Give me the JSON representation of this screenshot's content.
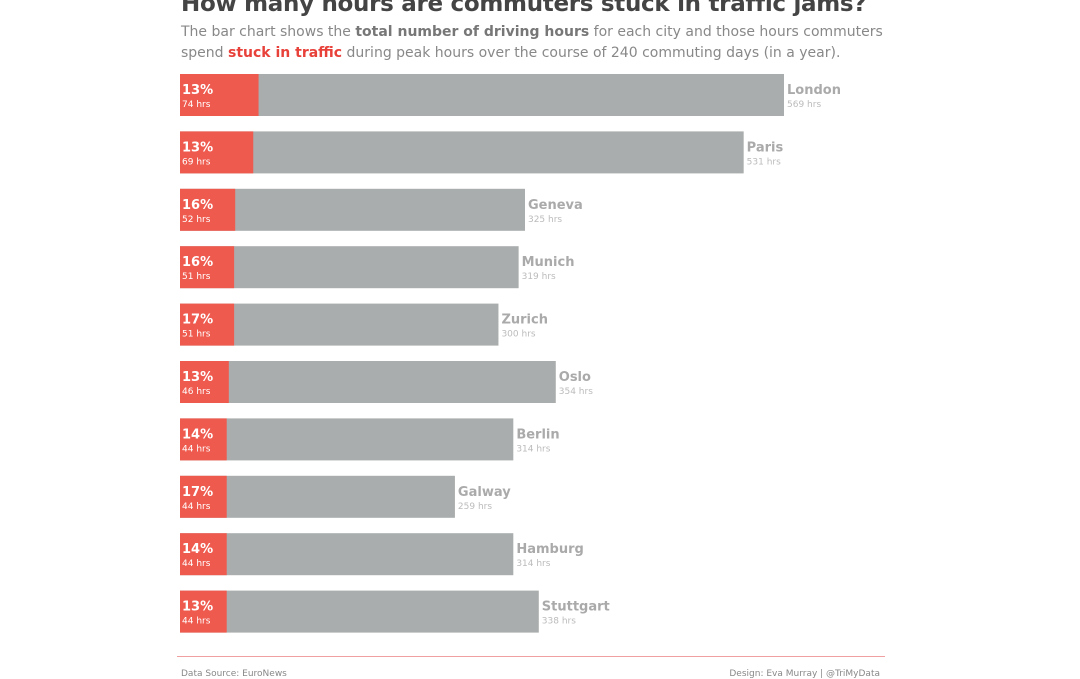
{
  "title": "How many hours are commuters  stuck in traffic jams?",
  "subtitle": {
    "part1": "The bar chart shows the ",
    "bold1": "total number of driving hours",
    "part2": " for each city and those hours commuters spend ",
    "red": "stuck in traffic",
    "part3": " during peak hours over the course of 240 commuting days (in a year)."
  },
  "footer": {
    "source": "Data Source: EuroNews",
    "design": "Design: Eva Murray | @TriMyData"
  },
  "colors": {
    "traffic": "#ef5a4e",
    "total": "#aaadad",
    "city_label": "#aaaaaa"
  },
  "chart_data": {
    "type": "bar",
    "orientation": "horizontal",
    "categories": [
      "London",
      "Paris",
      "Geneva",
      "Munich",
      "Zurich",
      "Oslo",
      "Berlin",
      "Galway",
      "Hamburg",
      "Stuttgart"
    ],
    "series": [
      {
        "name": "total number of driving hours",
        "values": [
          569,
          531,
          325,
          319,
          300,
          354,
          314,
          259,
          314,
          338
        ],
        "labels": [
          "569 hrs",
          "531 hrs",
          "325 hrs",
          "319 hrs",
          "300 hrs",
          "354 hrs",
          "314 hrs",
          "259 hrs",
          "314 hrs",
          "338 hrs"
        ]
      },
      {
        "name": "stuck in traffic",
        "values": [
          74,
          69,
          52,
          51,
          51,
          46,
          44,
          44,
          44,
          44
        ],
        "labels": [
          "74 hrs",
          "69 hrs",
          "52 hrs",
          "51 hrs",
          "51 hrs",
          "46 hrs",
          "44 hrs",
          "44 hrs",
          "44 hrs",
          "44 hrs"
        ],
        "percent_labels": [
          "13%",
          "13%",
          "16%",
          "16%",
          "17%",
          "13%",
          "14%",
          "17%",
          "14%",
          "13%"
        ]
      }
    ],
    "grid": false,
    "axes_visible": false
  }
}
